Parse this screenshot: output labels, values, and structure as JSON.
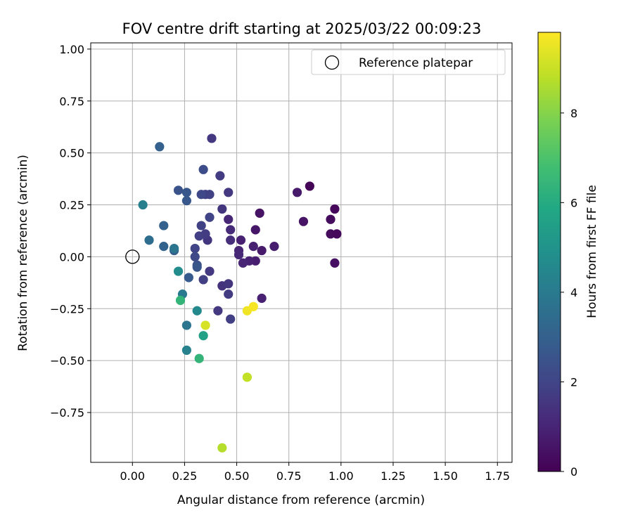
{
  "chart_data": {
    "type": "scatter",
    "title": "FOV centre drift starting at 2025/03/22 00:09:23",
    "xlabel": "Angular distance from reference (arcmin)",
    "ylabel": "Rotation from reference (arcmin)",
    "xlim": [
      -0.2,
      1.82
    ],
    "ylim": [
      -0.99,
      1.03
    ],
    "xticks": [
      0.0,
      0.25,
      0.5,
      0.75,
      1.0,
      1.25,
      1.5,
      1.75
    ],
    "xtick_labels": [
      "0.00",
      "0.25",
      "0.50",
      "0.75",
      "1.00",
      "1.25",
      "1.50",
      "1.75"
    ],
    "yticks": [
      -0.75,
      -0.5,
      -0.25,
      0.0,
      0.25,
      0.5,
      0.75,
      1.0
    ],
    "ytick_labels": [
      "−0.75",
      "−0.50",
      "−0.25",
      "0.00",
      "0.25",
      "0.50",
      "0.75",
      "1.00"
    ],
    "grid": true,
    "colormap": "viridis",
    "colorbar": {
      "label": "Hours from first FF file",
      "range": [
        0,
        9.8
      ],
      "ticks": [
        0,
        2,
        4,
        6,
        8
      ],
      "tick_labels": [
        "0",
        "2",
        "4",
        "6",
        "8"
      ]
    },
    "legend": {
      "position": "top-right",
      "entries": [
        "Reference platepar"
      ]
    },
    "reference_point": {
      "x": 0.0,
      "y": 0.0
    },
    "points": [
      {
        "x": 0.85,
        "y": 0.34,
        "hours": 0.1
      },
      {
        "x": 0.97,
        "y": 0.23,
        "hours": 0.2
      },
      {
        "x": 0.95,
        "y": 0.18,
        "hours": 0.3
      },
      {
        "x": 0.95,
        "y": 0.11,
        "hours": 0.3
      },
      {
        "x": 0.98,
        "y": 0.11,
        "hours": 0.2
      },
      {
        "x": 0.97,
        "y": -0.03,
        "hours": 0.4
      },
      {
        "x": 0.82,
        "y": 0.17,
        "hours": 0.5
      },
      {
        "x": 0.79,
        "y": 0.31,
        "hours": 0.7
      },
      {
        "x": 0.61,
        "y": 0.21,
        "hours": 0.5
      },
      {
        "x": 0.59,
        "y": 0.13,
        "hours": 0.6
      },
      {
        "x": 0.68,
        "y": 0.05,
        "hours": 0.8
      },
      {
        "x": 0.62,
        "y": 0.03,
        "hours": 0.7
      },
      {
        "x": 0.58,
        "y": 0.05,
        "hours": 0.9
      },
      {
        "x": 0.59,
        "y": -0.02,
        "hours": 0.8
      },
      {
        "x": 0.56,
        "y": -0.02,
        "hours": 0.9
      },
      {
        "x": 0.53,
        "y": -0.03,
        "hours": 1.0
      },
      {
        "x": 0.52,
        "y": 0.08,
        "hours": 0.9
      },
      {
        "x": 0.51,
        "y": 0.03,
        "hours": 1.0
      },
      {
        "x": 0.51,
        "y": 0.01,
        "hours": 1.1
      },
      {
        "x": 0.62,
        "y": -0.2,
        "hours": 0.9
      },
      {
        "x": 0.46,
        "y": 0.18,
        "hours": 1.1
      },
      {
        "x": 0.47,
        "y": 0.13,
        "hours": 1.2
      },
      {
        "x": 0.47,
        "y": 0.08,
        "hours": 1.3
      },
      {
        "x": 0.43,
        "y": 0.23,
        "hours": 1.5
      },
      {
        "x": 0.46,
        "y": 0.31,
        "hours": 1.6
      },
      {
        "x": 0.42,
        "y": 0.39,
        "hours": 1.7
      },
      {
        "x": 0.38,
        "y": 0.57,
        "hours": 1.6
      },
      {
        "x": 0.43,
        "y": -0.14,
        "hours": 1.4
      },
      {
        "x": 0.46,
        "y": -0.13,
        "hours": 1.5
      },
      {
        "x": 0.46,
        "y": -0.18,
        "hours": 1.7
      },
      {
        "x": 0.41,
        "y": -0.26,
        "hours": 1.6
      },
      {
        "x": 0.47,
        "y": -0.3,
        "hours": 1.8
      },
      {
        "x": 0.37,
        "y": -0.07,
        "hours": 1.6
      },
      {
        "x": 0.34,
        "y": -0.11,
        "hours": 1.8
      },
      {
        "x": 0.36,
        "y": 0.08,
        "hours": 1.5
      },
      {
        "x": 0.35,
        "y": 0.11,
        "hours": 1.7
      },
      {
        "x": 0.32,
        "y": 0.1,
        "hours": 1.8
      },
      {
        "x": 0.33,
        "y": 0.15,
        "hours": 1.9
      },
      {
        "x": 0.37,
        "y": 0.19,
        "hours": 2.0
      },
      {
        "x": 0.35,
        "y": 0.3,
        "hours": 1.8
      },
      {
        "x": 0.37,
        "y": 0.3,
        "hours": 1.9
      },
      {
        "x": 0.33,
        "y": 0.3,
        "hours": 2.1
      },
      {
        "x": 0.34,
        "y": 0.42,
        "hours": 2.3
      },
      {
        "x": 0.3,
        "y": 0.04,
        "hours": 2.0
      },
      {
        "x": 0.3,
        "y": 0.0,
        "hours": 2.2
      },
      {
        "x": 0.31,
        "y": -0.04,
        "hours": 2.4
      },
      {
        "x": 0.31,
        "y": -0.05,
        "hours": 2.6
      },
      {
        "x": 0.27,
        "y": -0.1,
        "hours": 2.8
      },
      {
        "x": 0.26,
        "y": 0.31,
        "hours": 2.6
      },
      {
        "x": 0.26,
        "y": 0.27,
        "hours": 2.7
      },
      {
        "x": 0.22,
        "y": 0.32,
        "hours": 2.5
      },
      {
        "x": 0.2,
        "y": 0.03,
        "hours": 2.9
      },
      {
        "x": 0.15,
        "y": 0.05,
        "hours": 3.1
      },
      {
        "x": 0.15,
        "y": 0.15,
        "hours": 3.0
      },
      {
        "x": 0.13,
        "y": 0.53,
        "hours": 3.0
      },
      {
        "x": 0.08,
        "y": 0.08,
        "hours": 3.5
      },
      {
        "x": 0.05,
        "y": 0.25,
        "hours": 4.2
      },
      {
        "x": 0.2,
        "y": 0.04,
        "hours": 3.8
      },
      {
        "x": 0.22,
        "y": -0.07,
        "hours": 4.7
      },
      {
        "x": 0.24,
        "y": -0.18,
        "hours": 4.0
      },
      {
        "x": 0.26,
        "y": -0.33,
        "hours": 3.8
      },
      {
        "x": 0.26,
        "y": -0.45,
        "hours": 4.3
      },
      {
        "x": 0.31,
        "y": -0.26,
        "hours": 4.6
      },
      {
        "x": 0.23,
        "y": -0.21,
        "hours": 6.4
      },
      {
        "x": 0.34,
        "y": -0.38,
        "hours": 5.6
      },
      {
        "x": 0.32,
        "y": -0.49,
        "hours": 6.4
      },
      {
        "x": 0.35,
        "y": -0.33,
        "hours": 9.2
      },
      {
        "x": 0.55,
        "y": -0.26,
        "hours": 9.6
      },
      {
        "x": 0.58,
        "y": -0.24,
        "hours": 9.7
      },
      {
        "x": 0.55,
        "y": -0.58,
        "hours": 8.9
      },
      {
        "x": 0.43,
        "y": -0.92,
        "hours": 8.7
      }
    ]
  }
}
